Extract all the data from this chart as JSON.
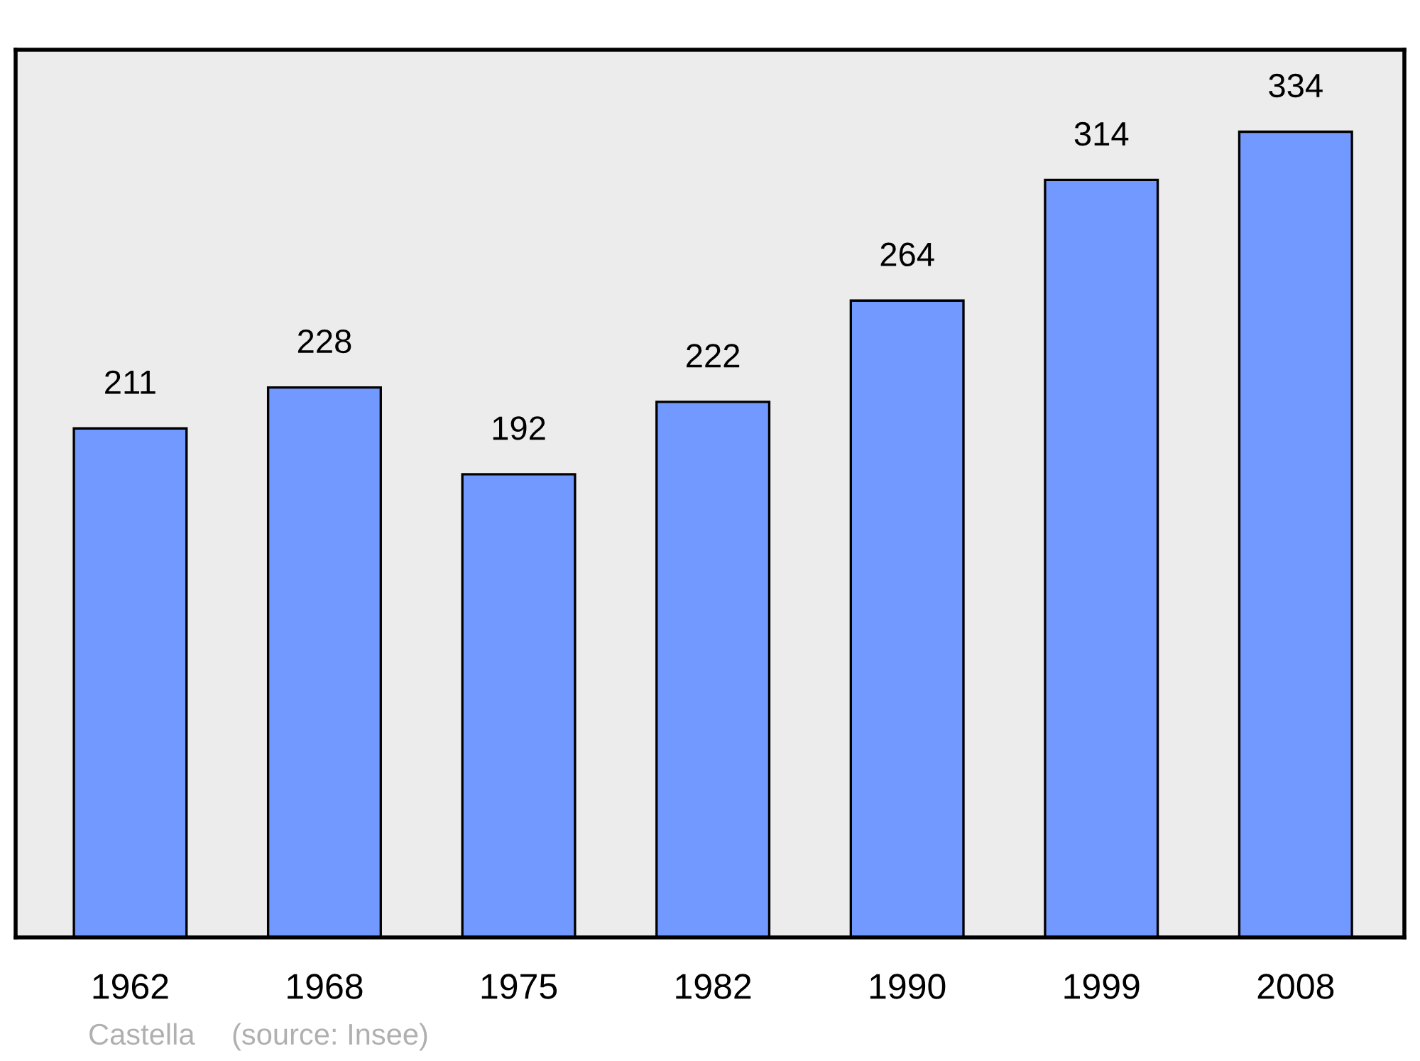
{
  "chart_data": {
    "type": "bar",
    "categories": [
      "1962",
      "1968",
      "1975",
      "1982",
      "1990",
      "1999",
      "2008"
    ],
    "values": [
      211,
      228,
      192,
      222,
      264,
      314,
      334
    ],
    "color": "#7299ff",
    "data_labels": true,
    "ylim": [
      0,
      368
    ],
    "tick_labels": "x",
    "grid": false,
    "legend": false,
    "annotations": [
      "Castella",
      "(source: Insee)"
    ]
  }
}
